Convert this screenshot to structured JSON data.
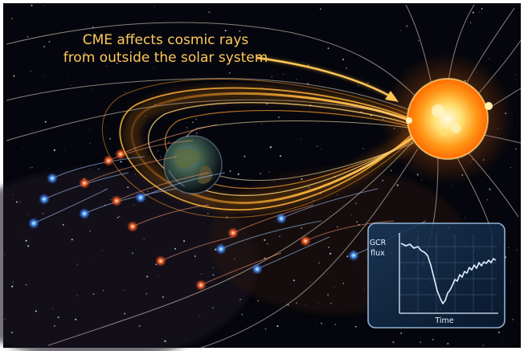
{
  "caption": {
    "line1": "CME affects cosmic rays",
    "line2": "from outside the solar system"
  },
  "inset": {
    "ylabel_line1": "GCR",
    "ylabel_line2": "flux",
    "xlabel": "Time"
  },
  "colors": {
    "space": "#05060d",
    "sun_core": "#fff6c8",
    "sun_mid": "#ffb020",
    "cme": "#ffb43a",
    "caption": "#ffc95a",
    "particle_red": "#ff5a2a",
    "particle_blue": "#4a9cff",
    "inset_line": "#cfe6ff"
  },
  "icons": [
    "sun-icon",
    "earth-icon"
  ]
}
